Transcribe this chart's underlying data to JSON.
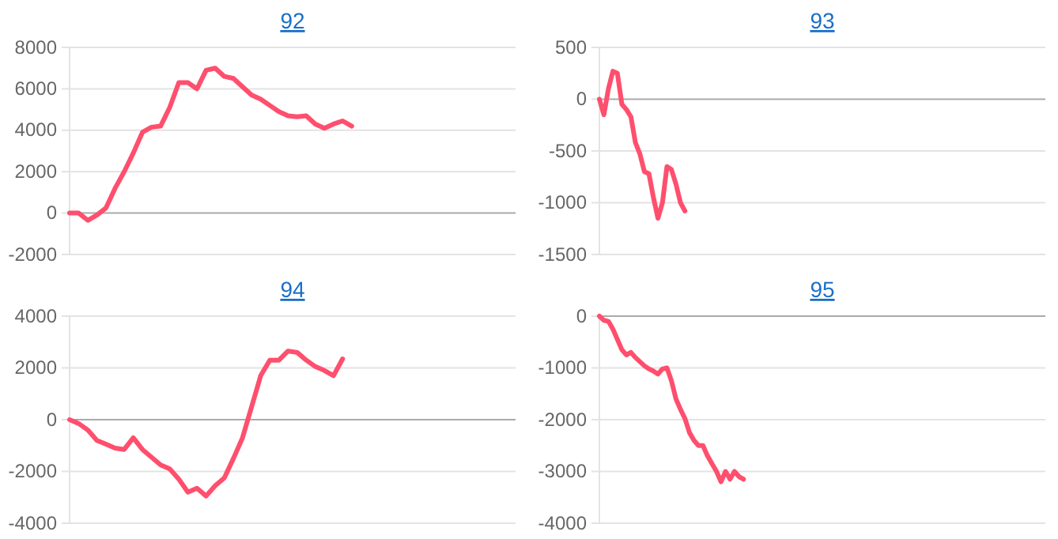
{
  "chart_data": [
    {
      "type": "line",
      "title": "92",
      "categories": [
        null,
        null,
        null,
        null,
        null,
        null,
        null,
        null,
        null,
        null,
        null,
        null,
        null,
        null,
        null,
        null,
        null,
        null,
        null,
        null,
        null,
        null,
        null,
        null,
        null,
        null,
        null,
        null,
        null,
        null,
        null,
        null,
        null,
        null,
        null,
        null,
        null,
        null,
        null,
        null,
        null,
        null,
        null,
        null,
        null,
        null,
        null,
        null,
        null,
        null
      ],
      "series": [
        {
          "color": "#ff4f6e",
          "values": [
            0,
            0,
            -350,
            -100,
            250,
            1200,
            2000,
            2900,
            3900,
            4150,
            4200,
            5100,
            6300,
            6300,
            6000,
            6900,
            7000,
            6600,
            6500,
            6100,
            5700,
            5500,
            5200,
            4900,
            4700,
            4650,
            4700,
            4300,
            4100,
            4300,
            4450,
            4200,
            null,
            null,
            null,
            null,
            null,
            null,
            null,
            null,
            null,
            null,
            null,
            null,
            null,
            null,
            null,
            null,
            null,
            null
          ]
        }
      ],
      "ylim": [
        -2000,
        8000
      ],
      "yticks": [
        -2000,
        0,
        2000,
        4000,
        6000,
        8000
      ],
      "grid": "y",
      "tick_labels": "y",
      "line_style": "solid",
      "marker": "none"
    },
    {
      "type": "line",
      "title": "93",
      "categories": [
        null,
        null,
        null,
        null,
        null,
        null,
        null,
        null,
        null,
        null,
        null,
        null,
        null,
        null,
        null,
        null,
        null,
        null,
        null,
        null,
        null,
        null,
        null,
        null,
        null,
        null,
        null,
        null,
        null,
        null,
        null,
        null,
        null,
        null,
        null,
        null,
        null,
        null,
        null,
        null,
        null,
        null,
        null,
        null,
        null,
        null,
        null,
        null,
        null,
        null,
        null,
        null,
        null,
        null,
        null,
        null,
        null,
        null,
        null,
        null,
        null,
        null,
        null,
        null,
        null,
        null,
        null,
        null,
        null,
        null,
        null,
        null,
        null,
        null,
        null,
        null,
        null,
        null,
        null,
        null,
        null,
        null,
        null,
        null,
        null,
        null,
        null,
        null,
        null,
        null,
        null,
        null,
        null,
        null,
        null,
        null,
        null,
        null,
        null,
        null
      ],
      "series": [
        {
          "color": "#ff4f6e",
          "values": [
            0,
            -150,
            100,
            270,
            250,
            -50,
            -100,
            -170,
            -420,
            -530,
            -700,
            -720,
            -950,
            -1150,
            -1000,
            -650,
            -680,
            -820,
            -1000,
            -1080,
            null,
            null,
            null,
            null,
            null,
            null,
            null,
            null,
            null,
            null,
            null,
            null,
            null,
            null,
            null,
            null,
            null,
            null,
            null,
            null,
            null,
            null,
            null,
            null,
            null,
            null,
            null,
            null,
            null,
            null,
            null,
            null,
            null,
            null,
            null,
            null,
            null,
            null,
            null,
            null,
            null,
            null,
            null,
            null,
            null,
            null,
            null,
            null,
            null,
            null,
            null,
            null,
            null,
            null,
            null,
            null,
            null,
            null,
            null,
            null,
            null,
            null,
            null,
            null,
            null,
            null,
            null,
            null,
            null,
            null,
            null,
            null,
            null,
            null,
            null,
            null,
            null,
            null,
            null,
            null
          ]
        }
      ],
      "ylim": [
        -1500,
        500
      ],
      "yticks": [
        -1500,
        -1000,
        -500,
        0,
        500
      ],
      "grid": "y",
      "tick_labels": "y",
      "line_style": "solid",
      "marker": "none"
    },
    {
      "type": "line",
      "title": "94",
      "categories": [
        null,
        null,
        null,
        null,
        null,
        null,
        null,
        null,
        null,
        null,
        null,
        null,
        null,
        null,
        null,
        null,
        null,
        null,
        null,
        null,
        null,
        null,
        null,
        null,
        null,
        null,
        null,
        null,
        null,
        null,
        null,
        null,
        null,
        null,
        null,
        null,
        null,
        null,
        null,
        null,
        null,
        null,
        null,
        null,
        null,
        null,
        null,
        null,
        null,
        null
      ],
      "series": [
        {
          "color": "#ff4f6e",
          "values": [
            0,
            -150,
            -400,
            -800,
            -950,
            -1100,
            -1150,
            -700,
            -1150,
            -1450,
            -1750,
            -1900,
            -2300,
            -2800,
            -2650,
            -2950,
            -2550,
            -2250,
            -1500,
            -700,
            500,
            1700,
            2300,
            2300,
            2650,
            2600,
            2300,
            2050,
            1900,
            1700,
            2350,
            null,
            null,
            null,
            null,
            null,
            null,
            null,
            null,
            null,
            null,
            null,
            null,
            null,
            null,
            null,
            null,
            null,
            null,
            null
          ]
        }
      ],
      "ylim": [
        -4000,
        4000
      ],
      "yticks": [
        -4000,
        -2000,
        0,
        2000,
        4000
      ],
      "grid": "y",
      "tick_labels": "y",
      "line_style": "solid",
      "marker": "none"
    },
    {
      "type": "line",
      "title": "95",
      "categories": [
        null,
        null,
        null,
        null,
        null,
        null,
        null,
        null,
        null,
        null,
        null,
        null,
        null,
        null,
        null,
        null,
        null,
        null,
        null,
        null,
        null,
        null,
        null,
        null,
        null,
        null,
        null,
        null,
        null,
        null,
        null,
        null,
        null,
        null,
        null,
        null,
        null,
        null,
        null,
        null,
        null,
        null,
        null,
        null,
        null,
        null,
        null,
        null,
        null,
        null,
        null,
        null,
        null,
        null,
        null,
        null,
        null,
        null,
        null,
        null,
        null,
        null,
        null,
        null,
        null,
        null,
        null,
        null,
        null,
        null,
        null,
        null,
        null,
        null,
        null,
        null,
        null,
        null,
        null,
        null,
        null,
        null,
        null,
        null,
        null,
        null,
        null,
        null,
        null,
        null,
        null,
        null,
        null,
        null,
        null,
        null,
        null,
        null,
        null,
        null
      ],
      "series": [
        {
          "color": "#ff4f6e",
          "values": [
            0,
            -80,
            -100,
            -250,
            -450,
            -650,
            -750,
            -700,
            -800,
            -880,
            -960,
            -1020,
            -1060,
            -1120,
            -1020,
            -1000,
            -1250,
            -1600,
            -1800,
            -1980,
            -2250,
            -2400,
            -2500,
            -2500,
            -2700,
            -2850,
            -3000,
            -3200,
            -3000,
            -3150,
            -3000,
            -3100,
            -3150,
            null,
            null,
            null,
            null,
            null,
            null,
            null,
            null,
            null,
            null,
            null,
            null,
            null,
            null,
            null,
            null,
            null,
            null,
            null,
            null,
            null,
            null,
            null,
            null,
            null,
            null,
            null,
            null,
            null,
            null,
            null,
            null,
            null,
            null,
            null,
            null,
            null,
            null,
            null,
            null,
            null,
            null,
            null,
            null,
            null,
            null,
            null,
            null,
            null,
            null,
            null,
            null,
            null,
            null,
            null,
            null,
            null,
            null,
            null,
            null,
            null,
            null,
            null,
            null,
            null,
            null,
            null
          ]
        }
      ],
      "ylim": [
        -4000,
        0
      ],
      "yticks": [
        -4000,
        -3000,
        -2000,
        -1000,
        0
      ],
      "grid": "y",
      "tick_labels": "y",
      "line_style": "solid",
      "marker": "none"
    }
  ]
}
